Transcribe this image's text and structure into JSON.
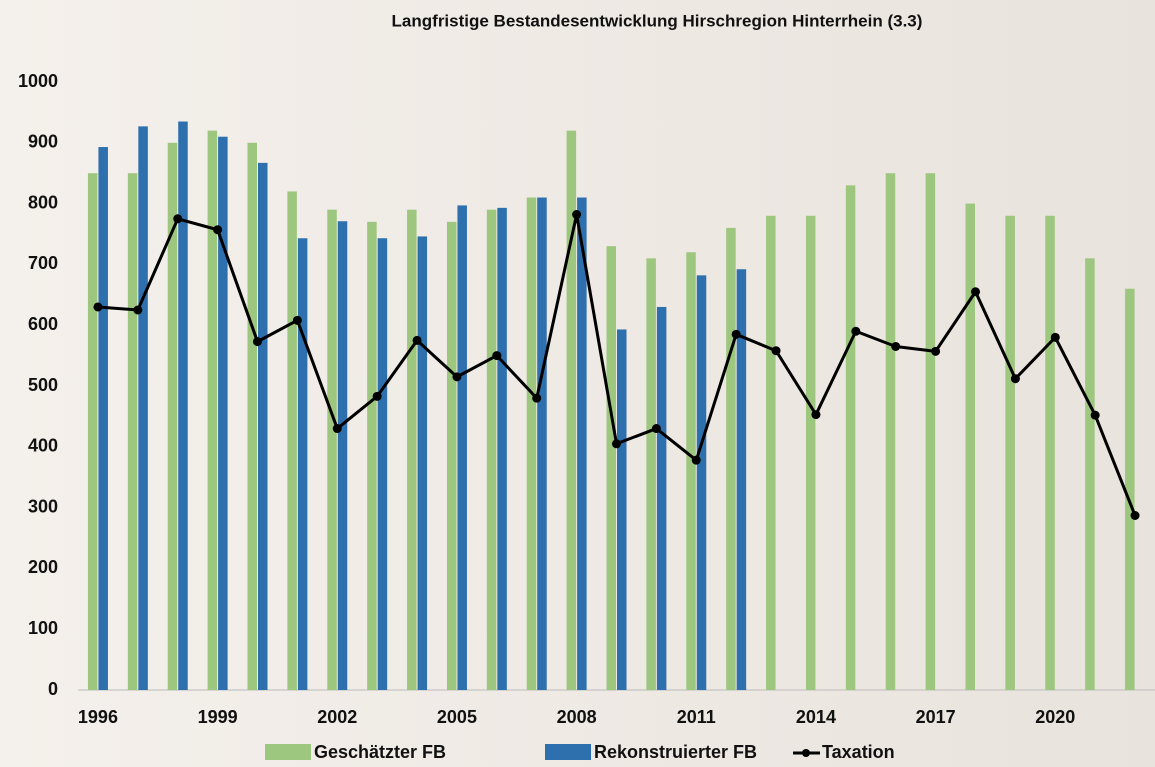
{
  "chart_data": {
    "type": "bar",
    "title": "Langfristige Bestandesentwicklung Hirschregion Hinterrhein (3.3)",
    "categories": [
      "1996",
      null,
      null,
      "1999",
      null,
      null,
      "2002",
      null,
      null,
      "2005",
      null,
      null,
      "2008",
      null,
      null,
      "2011",
      null,
      null,
      "2014",
      null,
      null,
      "2017",
      null,
      null,
      "2020",
      null,
      null
    ],
    "series": [
      {
        "name": "Geschätzter FB",
        "color": "#9dc67f",
        "type": "bar",
        "values": [
          850,
          850,
          900,
          920,
          900,
          820,
          790,
          770,
          790,
          770,
          790,
          810,
          920,
          730,
          710,
          720,
          760,
          780,
          780,
          830,
          850,
          850,
          800,
          780,
          780,
          710,
          660
        ]
      },
      {
        "name": "Rekonstruierter FB",
        "color": "#2e6fad",
        "type": "bar",
        "values": [
          893,
          927,
          935,
          910,
          867,
          743,
          771,
          743,
          746,
          797,
          793,
          810,
          810,
          593,
          630,
          682,
          692,
          null,
          null,
          null,
          null,
          null,
          null,
          null,
          null,
          null,
          null
        ]
      },
      {
        "name": "Taxation",
        "color": "#000000",
        "type": "line",
        "values": [
          630,
          625,
          775,
          757,
          573,
          608,
          430,
          483,
          575,
          515,
          550,
          480,
          782,
          405,
          430,
          378,
          585,
          558,
          453,
          590,
          565,
          557,
          655,
          512,
          580,
          452,
          287
        ]
      }
    ],
    "ylim": [
      0,
      1000
    ],
    "yticks": [
      0,
      100,
      200,
      300,
      400,
      500,
      600,
      700,
      800,
      900,
      1000
    ],
    "grid": false
  }
}
